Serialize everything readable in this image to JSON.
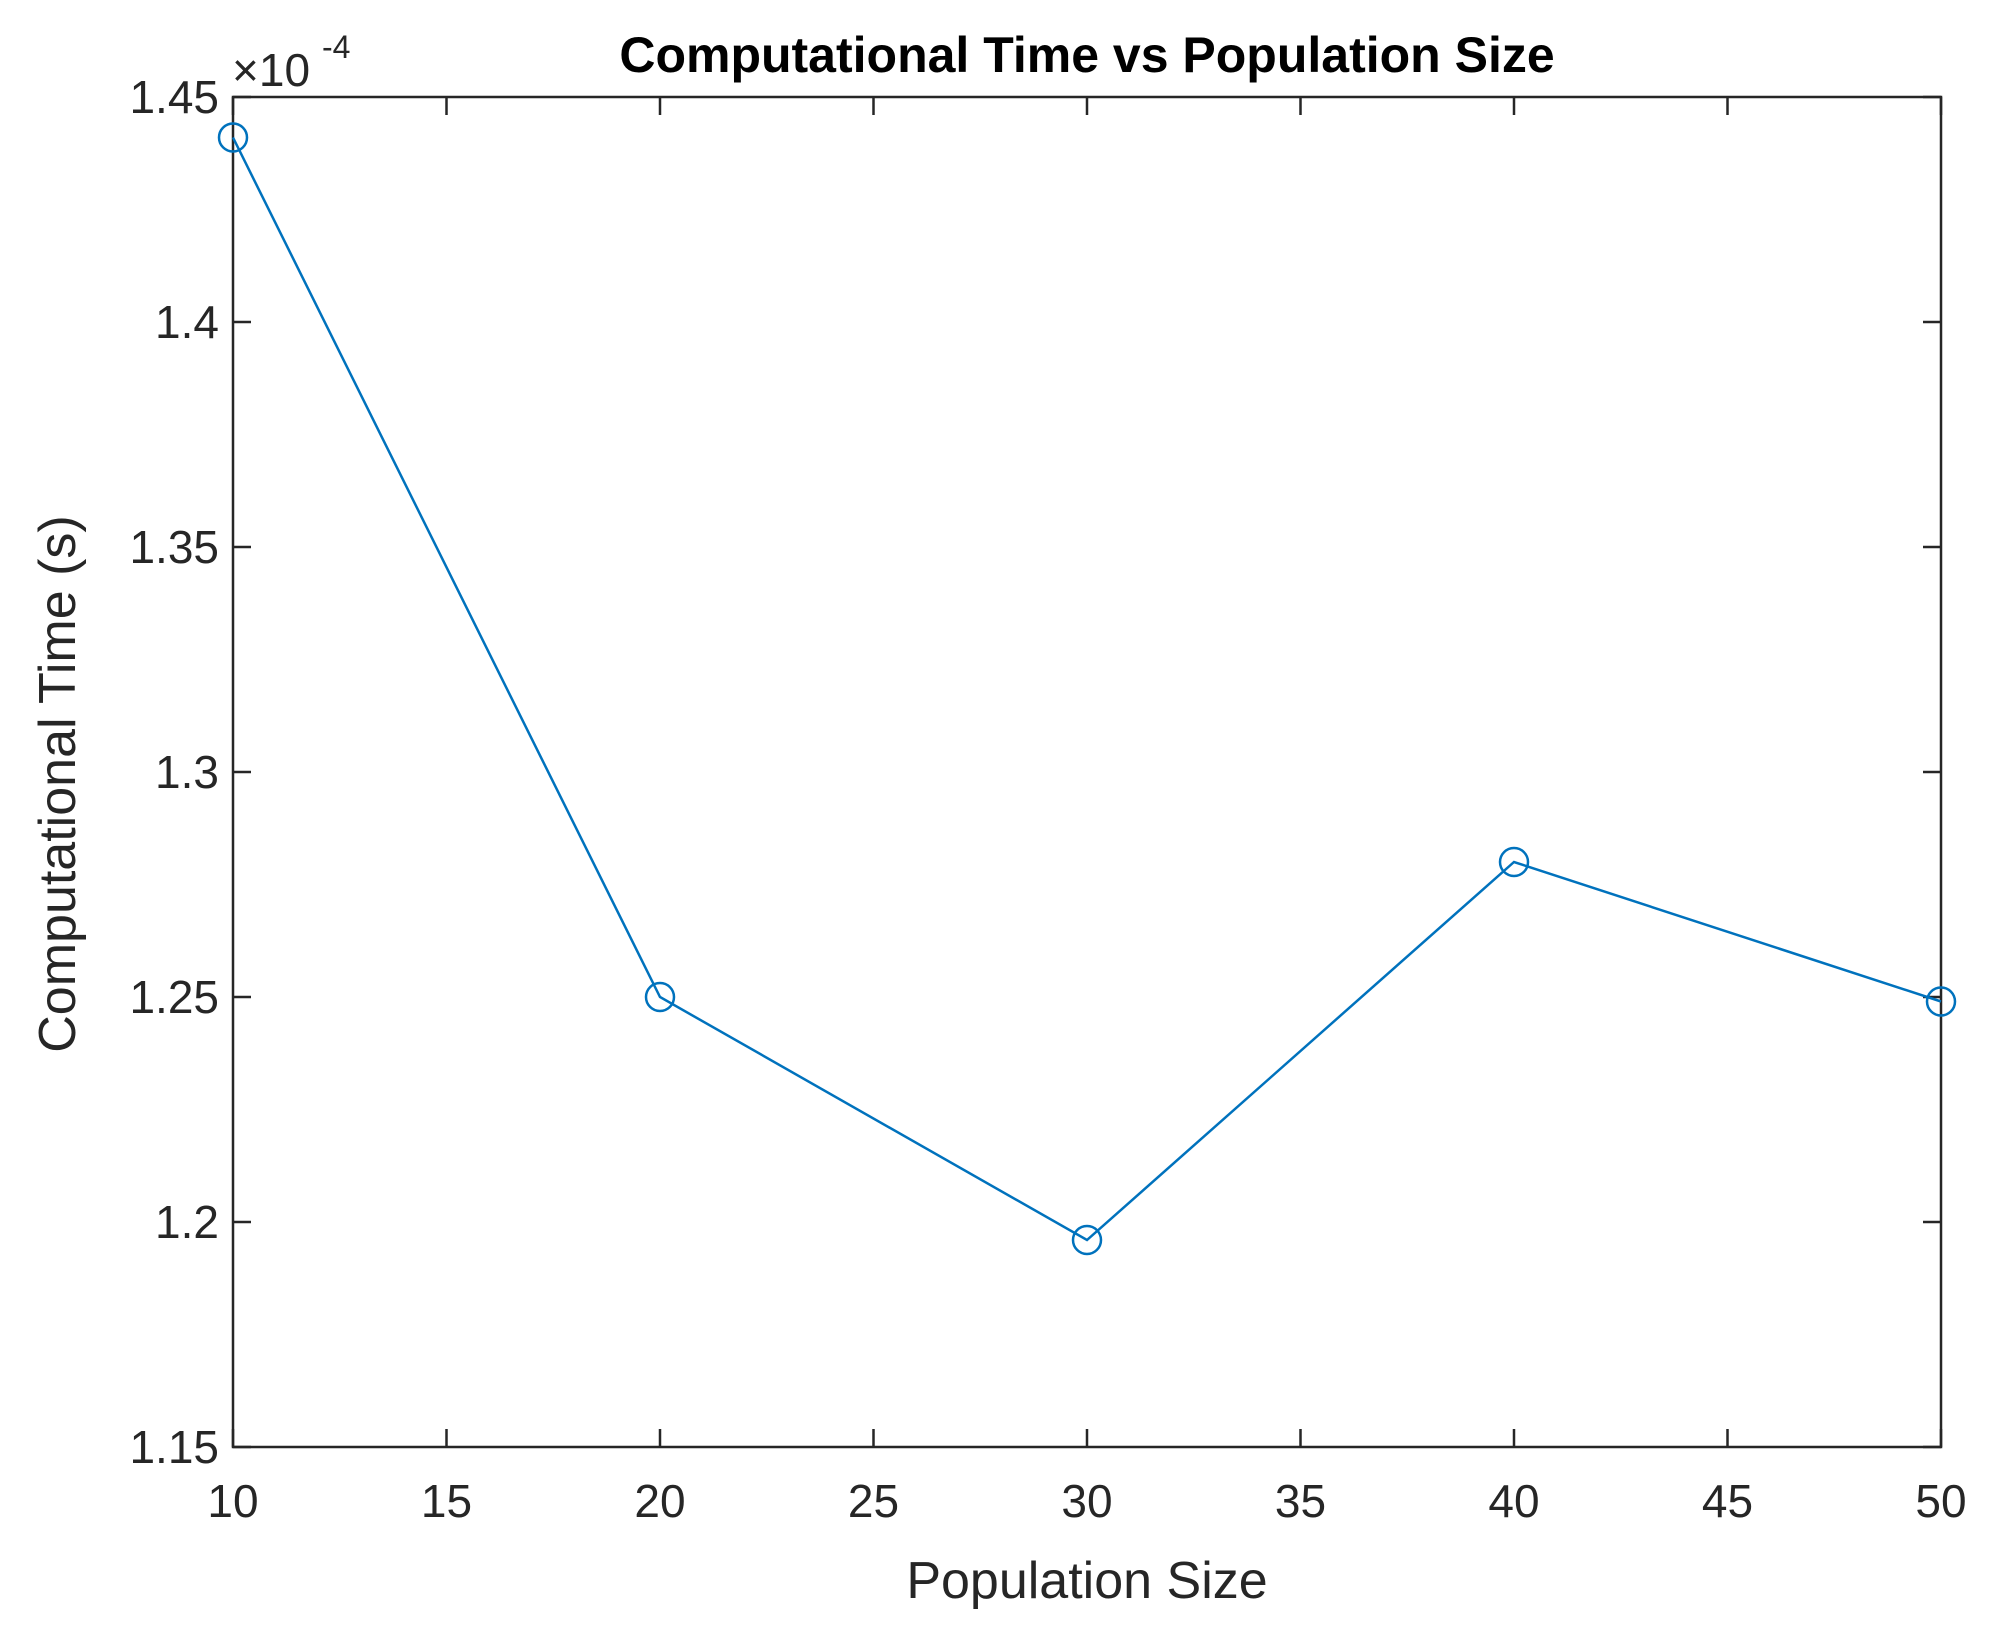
{
  "chart_data": {
    "type": "line",
    "title": "Computational Time vs Population Size",
    "xlabel": "Population Size",
    "ylabel": "Computational Time (s)",
    "y_exponent_base": "×10",
    "y_exponent_power": "-4",
    "xlim": [
      10,
      50
    ],
    "ylim": [
      1.15,
      1.45
    ],
    "x_ticks": [
      10,
      15,
      20,
      25,
      30,
      35,
      40,
      45,
      50
    ],
    "x_tick_labels": [
      "10",
      "15",
      "20",
      "25",
      "30",
      "35",
      "40",
      "45",
      "50"
    ],
    "y_ticks": [
      1.15,
      1.2,
      1.25,
      1.3,
      1.35,
      1.4,
      1.45
    ],
    "y_tick_labels": [
      "1.15",
      "1.2",
      "1.25",
      "1.3",
      "1.35",
      "1.4",
      "1.45"
    ],
    "grid": false,
    "series": [
      {
        "x": [
          10,
          20,
          30,
          40,
          50
        ],
        "y": [
          1.441,
          1.25,
          1.196,
          1.28,
          1.249
        ],
        "marker": "circle",
        "color": "#0072BD"
      }
    ]
  }
}
